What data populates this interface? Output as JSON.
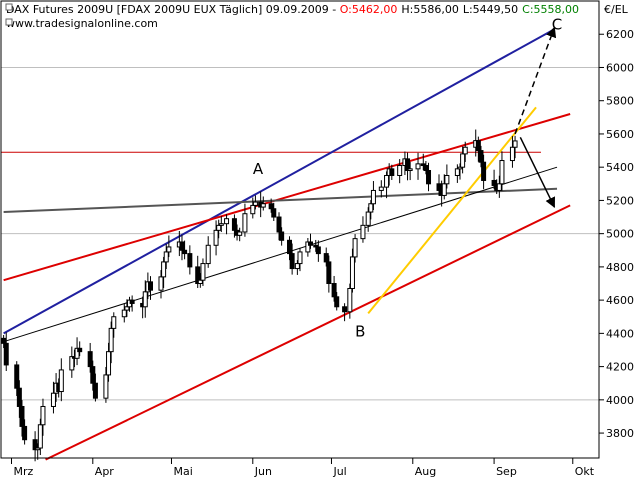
{
  "header": {
    "title_prefix": "DAX Futures 2009U [FDAX 2009U EUX  Täglich] 09.09.2009 - ",
    "open": "O:5462,00",
    "high": "H:5586,00",
    "low": "L:5449,50",
    "close": "C:5558,00",
    "source": "www.tradesignalonline.com",
    "unit": "€/EL",
    "colors": {
      "open": "#ff0000",
      "close": "#008000",
      "text": "#000000"
    }
  },
  "chart_data": {
    "type": "candlestick",
    "instrument": "DAX Futures 2009U",
    "date_range": [
      "2009-02-26",
      "2009-09-09"
    ],
    "ylim": [
      3650,
      6400
    ],
    "y_ticks": [
      3800,
      4000,
      4200,
      4400,
      4600,
      4800,
      5000,
      5200,
      5400,
      5600,
      5800,
      6000,
      6200
    ],
    "month_labels": [
      "Mrz",
      "Apr",
      "Mai",
      "Jun",
      "Jul",
      "Aug",
      "Sep",
      "Okt"
    ],
    "month_starts": [
      "2009-03-01",
      "2009-04-01",
      "2009-05-01",
      "2009-06-01",
      "2009-07-01",
      "2009-08-01",
      "2009-09-01",
      "2009-10-01"
    ],
    "horizontal_grid": [
      4000,
      5000,
      6000
    ],
    "horizontal_line": {
      "value": 5490,
      "color": "#cc0000"
    },
    "closes": [
      4340,
      4210,
      4070,
      3960,
      3840,
      3760,
      3700,
      3710,
      3850,
      3960,
      4040,
      4100,
      4050,
      4180,
      4260,
      4250,
      4310,
      4290,
      4200,
      4100,
      4010,
      4150,
      4290,
      4430,
      4500,
      4540,
      4560,
      4600,
      4580,
      4560,
      4650,
      4710,
      4660,
      4740,
      4830,
      4890,
      4920,
      4950,
      4900,
      4880,
      4800,
      4700,
      4720,
      4820,
      4930,
      5020,
      5050,
      5060,
      5090,
      5020,
      4990,
      5010,
      5120,
      5170,
      5190,
      5160,
      5180,
      5150,
      5100,
      5010,
      4960,
      4880,
      4790,
      4820,
      4890,
      4950,
      4930,
      4920,
      4880,
      4830,
      4700,
      4620,
      4560,
      4530,
      4670,
      4860,
      4970,
      5050,
      5130,
      5180,
      5260,
      5280,
      5350,
      5390,
      5350,
      5410,
      5450,
      5380,
      5390,
      5420,
      5410,
      5380,
      5300,
      5260,
      5230,
      5300,
      5350,
      5390,
      5400,
      5480,
      5520,
      5560,
      5500,
      5430,
      5320,
      5290,
      5260,
      5300,
      5440,
      5520,
      5558
    ],
    "annotations": [
      {
        "label": "A",
        "date": "2009-06-03",
        "value": 5360
      },
      {
        "label": "B",
        "date": "2009-07-12",
        "value": 4380
      },
      {
        "label": "C",
        "date": "2009-09-25",
        "value": 6230
      }
    ],
    "trendlines": [
      {
        "name": "blue channel",
        "color": "#2020a0",
        "points": [
          [
            "2009-02-26",
            4400
          ],
          [
            "2009-09-24",
            6230
          ]
        ]
      },
      {
        "name": "red upper",
        "color": "#dd0000",
        "points": [
          [
            "2009-02-26",
            4720
          ],
          [
            "2009-09-30",
            5720
          ]
        ]
      },
      {
        "name": "red lower",
        "color": "#dd0000",
        "points": [
          [
            "2009-03-14",
            3640
          ],
          [
            "2009-09-30",
            5170
          ]
        ]
      },
      {
        "name": "grey",
        "color": "#555555",
        "points": [
          [
            "2009-02-26",
            5130
          ],
          [
            "2009-09-25",
            5270
          ]
        ]
      },
      {
        "name": "black thin",
        "color": "#000000",
        "points": [
          [
            "2009-02-26",
            4350
          ],
          [
            "2009-09-25",
            5400
          ]
        ]
      },
      {
        "name": "yellow",
        "color": "#ffcc00",
        "points": [
          [
            "2009-07-15",
            4520
          ],
          [
            "2009-09-17",
            5760
          ]
        ]
      }
    ],
    "arrows": [
      {
        "name": "dashed to C",
        "style": "dashed",
        "color": "#000000",
        "from": [
          "2009-09-09",
          5600
        ],
        "to": [
          "2009-09-24",
          6240
        ]
      },
      {
        "name": "solid down",
        "style": "solid",
        "color": "#000000",
        "from": [
          "2009-09-11",
          5580
        ],
        "to": [
          "2009-09-24",
          5160
        ]
      }
    ]
  }
}
